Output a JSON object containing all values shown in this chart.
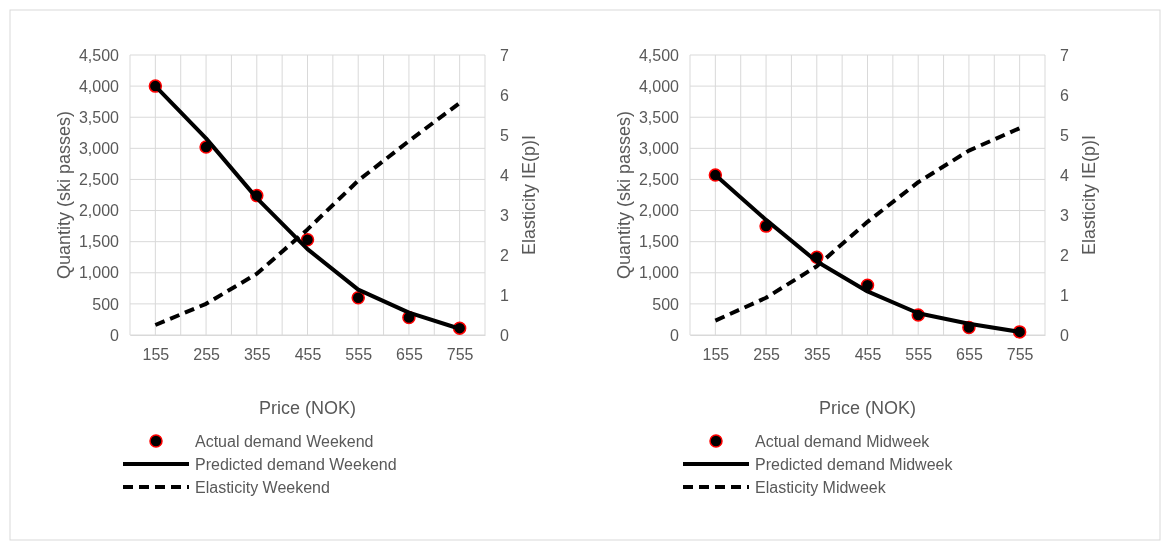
{
  "chart_data": [
    {
      "type": "line",
      "xlabel": "Price (NOK)",
      "ylabel": "Quantity (ski passes)",
      "y2label": "Elasticity IE(p)I",
      "categories": [
        "155",
        "255",
        "355",
        "455",
        "555",
        "655",
        "755"
      ],
      "series": [
        {
          "name": "Actual demand Weekend",
          "type": "scatter",
          "marker": "circle",
          "color": "#000000",
          "values": [
            4000,
            3020,
            2240,
            1530,
            600,
            280,
            110
          ]
        },
        {
          "name": "Predicted demand Weekend",
          "type": "line",
          "line_style": "solid",
          "color": "#000000",
          "values": [
            4000,
            3160,
            2200,
            1380,
            730,
            360,
            100
          ]
        },
        {
          "name": "Elasticity Weekend",
          "type": "line",
          "line_style": "dashed",
          "color": "#000000",
          "axis": "y2",
          "values": [
            0.25,
            0.78,
            1.53,
            2.64,
            3.86,
            4.85,
            5.8
          ]
        }
      ],
      "ylim": [
        0,
        4500
      ],
      "yticks": [
        0,
        {
          "value": 500,
          "label": "500"
        },
        {
          "value": 1000,
          "label": "1,000"
        },
        {
          "value": 1500,
          "label": "1,500"
        },
        {
          "value": 2000,
          "label": "2,000"
        },
        {
          "value": 2500,
          "label": "2,500"
        },
        {
          "value": 3000,
          "label": "3,000"
        },
        {
          "value": 3500,
          "label": "3,500"
        },
        {
          "value": 4000,
          "label": "4,000"
        },
        {
          "value": 4500,
          "label": "4,500"
        }
      ],
      "y2lim": [
        0,
        7
      ],
      "y2ticks": [
        0,
        1,
        2,
        3,
        4,
        5,
        6,
        7
      ],
      "grid": true,
      "legend": "bottom"
    },
    {
      "type": "line",
      "xlabel": "Price (NOK)",
      "ylabel": "Quantity (ski passes)",
      "y2label": "Elasticity IE(p)I",
      "categories": [
        "155",
        "255",
        "355",
        "455",
        "555",
        "655",
        "755"
      ],
      "series": [
        {
          "name": "Actual demand Midweek",
          "type": "scatter",
          "marker": "circle",
          "color": "#000000",
          "values": [
            2570,
            1750,
            1250,
            800,
            320,
            120,
            50
          ]
        },
        {
          "name": "Predicted demand Midweek",
          "type": "line",
          "line_style": "solid",
          "color": "#000000",
          "values": [
            2570,
            1850,
            1180,
            700,
            350,
            180,
            50
          ]
        },
        {
          "name": "Elasticity Midweek",
          "type": "line",
          "line_style": "dashed",
          "color": "#000000",
          "axis": "y2",
          "values": [
            0.36,
            0.93,
            1.72,
            2.83,
            3.82,
            4.61,
            5.17
          ]
        }
      ],
      "ylim": [
        0,
        4500
      ],
      "yticks": [
        0,
        {
          "value": 500,
          "label": "500"
        },
        {
          "value": 1000,
          "label": "1,000"
        },
        {
          "value": 1500,
          "label": "1,500"
        },
        {
          "value": 2000,
          "label": "2,000"
        },
        {
          "value": 2500,
          "label": "2,500"
        },
        {
          "value": 3000,
          "label": "3,000"
        },
        {
          "value": 3500,
          "label": "3,500"
        },
        {
          "value": 4000,
          "label": "4,000"
        },
        {
          "value": 4500,
          "label": "4,500"
        }
      ],
      "y2lim": [
        0,
        7
      ],
      "y2ticks": [
        0,
        1,
        2,
        3,
        4,
        5,
        6,
        7
      ],
      "grid": true,
      "legend": "bottom"
    }
  ]
}
